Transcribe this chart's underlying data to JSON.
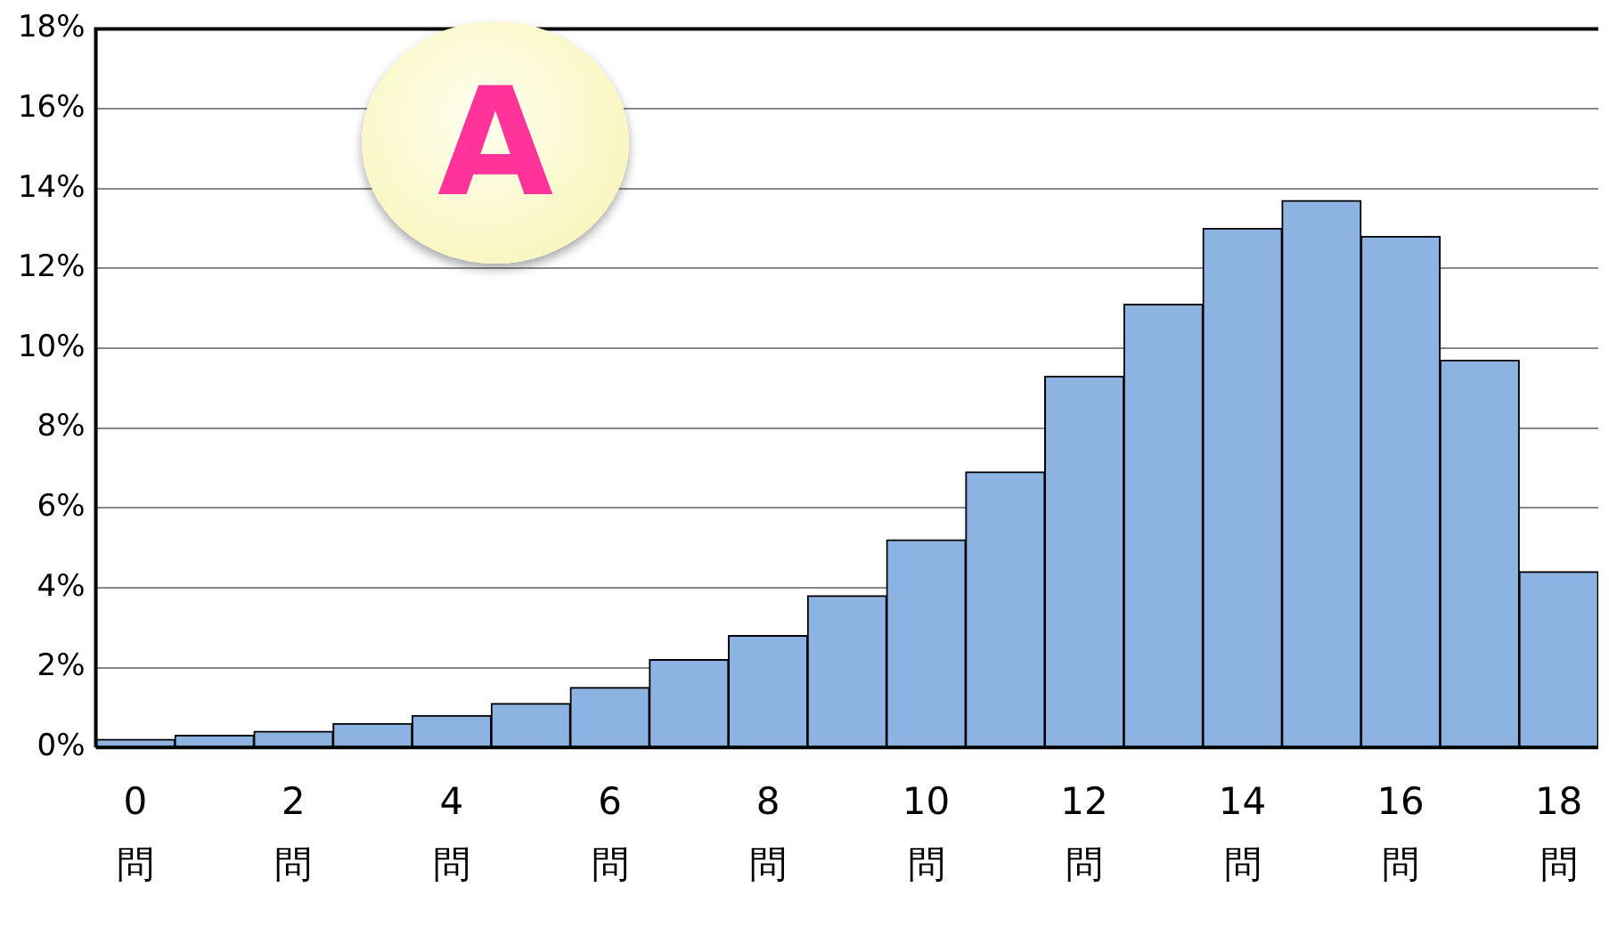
{
  "chart_data": {
    "type": "bar",
    "categories": [
      "0\n問",
      null,
      "2\n問",
      null,
      "4\n問",
      null,
      "6\n問",
      null,
      "8\n問",
      null,
      "10\n問",
      null,
      "12\n問",
      null,
      "14\n問",
      null,
      "16\n問",
      null,
      "18\n問"
    ],
    "values": [
      0.2,
      0.3,
      0.4,
      0.6,
      0.8,
      1.1,
      1.5,
      2.2,
      2.8,
      3.8,
      5.2,
      6.9,
      9.3,
      11.1,
      13.0,
      13.7,
      12.8,
      9.7,
      4.4
    ],
    "color": "#8db3e2",
    "ylim": [
      0,
      18
    ],
    "yticks": [
      {
        "value": 0,
        "label": "0%"
      },
      {
        "value": 2,
        "label": "2%"
      },
      {
        "value": 4,
        "label": "4%"
      },
      {
        "value": 6,
        "label": "6%"
      },
      {
        "value": 8,
        "label": "8%"
      },
      {
        "value": 10,
        "label": "10%"
      },
      {
        "value": 12,
        "label": "12%"
      },
      {
        "value": 14,
        "label": "14%"
      },
      {
        "value": 16,
        "label": "16%"
      },
      {
        "value": 18,
        "label": "18%"
      }
    ],
    "grid": "y",
    "legend": false,
    "annotations": [
      "A"
    ]
  }
}
